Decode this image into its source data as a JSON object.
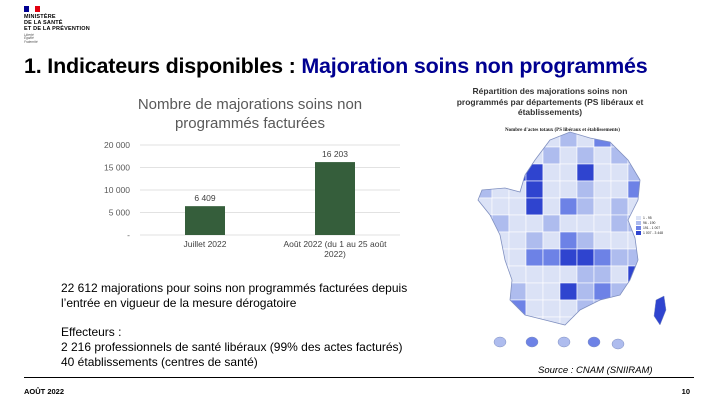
{
  "logo": {
    "flag_colors": [
      "#000091",
      "#ffffff",
      "#e1000f"
    ],
    "lines": [
      "MINISTÈRE",
      "DE LA SANTÉ",
      "ET DE LA PRÉVENTION"
    ],
    "motto": [
      "Liberté",
      "Égalité",
      "Fraternité"
    ]
  },
  "title": {
    "prefix": "1. Indicateurs disponibles : ",
    "highlight": "Majoration soins non programmés",
    "highlight_color": "#000091"
  },
  "chart_data": {
    "type": "bar",
    "title": "Nombre de majorations soins non programmés facturées",
    "categories": [
      "Juillet 2022",
      "Août 2022 (du 1 au 25 août 2022)"
    ],
    "category_lines": [
      [
        "Juillet 2022"
      ],
      [
        "Août 2022 (du 1 au 25 août",
        "2022)"
      ]
    ],
    "values": [
      6409,
      16203
    ],
    "value_labels": [
      "6 409",
      "16 203"
    ],
    "yticks": [
      0,
      5000,
      10000,
      15000,
      20000
    ],
    "ytick_labels": [
      "-",
      "5 000",
      "10 000",
      "15 000",
      "20 000"
    ],
    "ylim": [
      0,
      20000
    ],
    "bar_color": "#355e3b",
    "grid": true,
    "xlabel": "",
    "ylabel": ""
  },
  "description": {
    "paragraph1": "22 612 majorations pour soins non programmés facturées depuis l’entrée en vigueur de la mesure dérogatoire",
    "effecteurs_heading": "Effecteurs :",
    "effecteurs_line1": "2 216 professionnels de santé libéraux (99% des actes facturés)",
    "effecteurs_line2": "40 établissements (centres de santé)"
  },
  "map": {
    "title": "Répartition des majorations soins non programmés par départements (PS libéraux et établissements)",
    "subtitle": "Nombre d'actes totaux (PS libéraux et établissements)",
    "legend": [
      "1 - 95",
      "96 - 190",
      "191 - 1 007",
      "1 007 - 3 448"
    ],
    "palette": [
      "#dbe2f6",
      "#aebcee",
      "#6d82e6",
      "#2f44cf"
    ],
    "source": "Source : CNAM (SNIIRAM)"
  },
  "footer": {
    "date": "AOÛT 2022",
    "page": "10"
  }
}
